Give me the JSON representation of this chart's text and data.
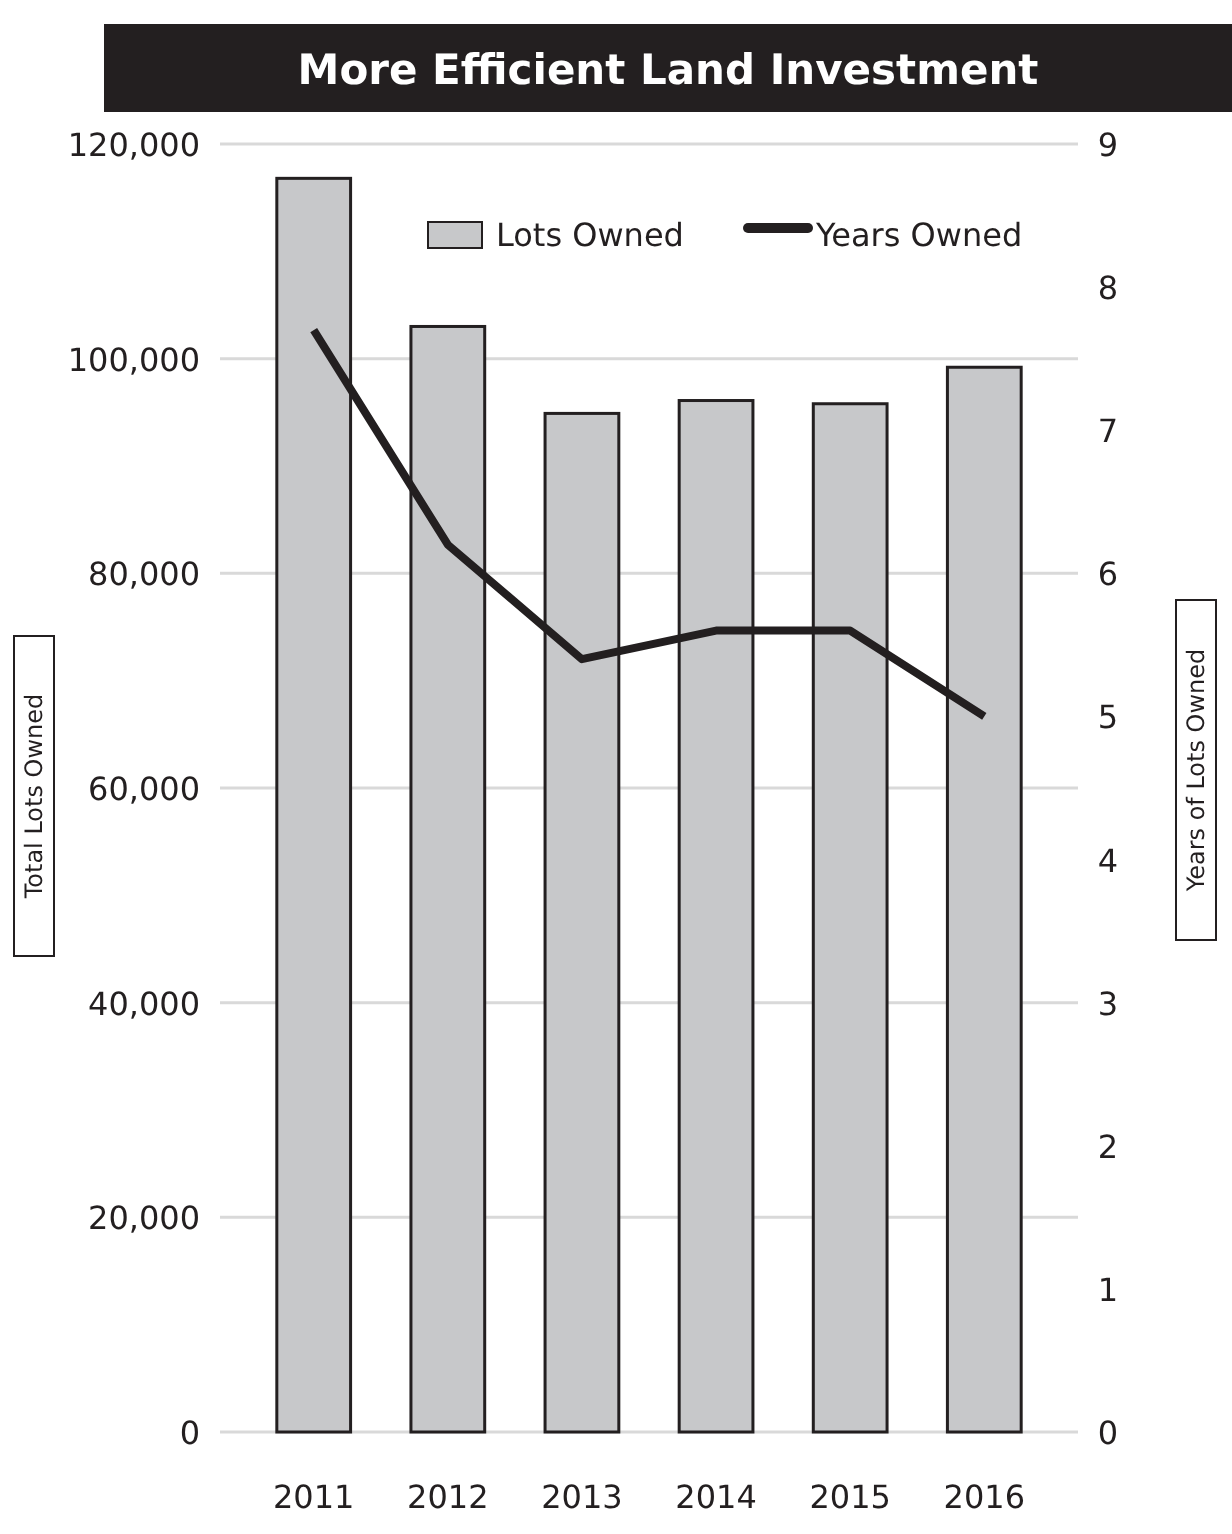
{
  "chart_data": {
    "type": "bar",
    "title": "More Efficient Land Investment",
    "categories": [
      "2011",
      "2012",
      "2013",
      "2014",
      "2015",
      "2016"
    ],
    "series": [
      {
        "name": "Lots Owned",
        "color": "#c7c8ca",
        "values": [
          116800,
          103000,
          94900,
          96100,
          95800,
          99200
        ]
      },
      {
        "name": "Years Owned",
        "type": "line",
        "axis": "y2",
        "color": "#231f20",
        "values": [
          7.7,
          6.2,
          5.4,
          5.6,
          5.6,
          5.0
        ]
      }
    ],
    "ylabel": "Total Lots Owned",
    "y2label": "Years of Lots Owned",
    "ylim": [
      0,
      120000
    ],
    "yticks": [
      {
        "value": 0,
        "label": "0"
      },
      {
        "value": 20000,
        "label": "20,000"
      },
      {
        "value": 40000,
        "label": "40,000"
      },
      {
        "value": 60000,
        "label": "60,000"
      },
      {
        "value": 80000,
        "label": "80,000"
      },
      {
        "value": 100000,
        "label": "100,000"
      },
      {
        "value": 120000,
        "label": "120,000"
      }
    ],
    "y2lim": [
      0,
      9
    ],
    "y2ticks": [
      0,
      1,
      2,
      3,
      4,
      5,
      6,
      7,
      8,
      9
    ],
    "grid": "y",
    "legend": "top right"
  }
}
